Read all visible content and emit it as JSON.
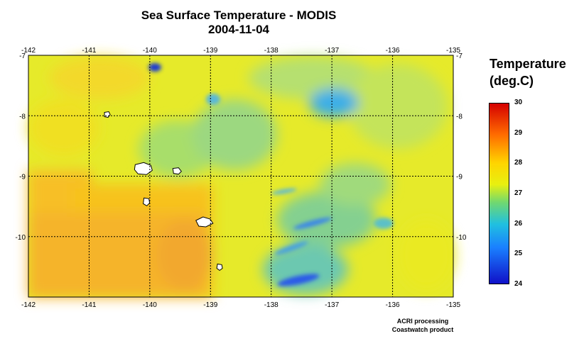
{
  "title": {
    "line1": "Sea Surface Temperature - MODIS",
    "line2": "2004-11-04"
  },
  "map": {
    "lon_min": -142,
    "lon_max": -135,
    "lat_min": -11,
    "lat_max": -7,
    "lon_ticks": [
      "-142",
      "-141",
      "-140",
      "-139",
      "-138",
      "-137",
      "-136",
      "-135"
    ],
    "lat_ticks": [
      "-7",
      "-8",
      "-9",
      "-10"
    ],
    "grid": "dotted",
    "islands": [
      {
        "name": "",
        "lon": -140.7,
        "lat": -7.98
      },
      {
        "name": "",
        "lon": -140.1,
        "lat": -8.88
      },
      {
        "name": "",
        "lon": -139.55,
        "lat": -8.92
      },
      {
        "name": "",
        "lon": -140.05,
        "lat": -9.42
      },
      {
        "name": "",
        "lon": -139.1,
        "lat": -9.78
      },
      {
        "name": "",
        "lon": -138.85,
        "lat": -10.5
      }
    ]
  },
  "colorbar": {
    "title_line1": "Temperature",
    "title_line2": "(deg.C)",
    "min": 24,
    "max": 30,
    "labels": [
      "30",
      "29",
      "28",
      "27",
      "26",
      "25",
      "24"
    ],
    "colors": [
      "#d40000",
      "#ff6a00",
      "#ffd400",
      "#f5f000",
      "#40d8a0",
      "#1aa0ff",
      "#1010d0"
    ]
  },
  "credit": {
    "line1": "ACRI processing",
    "line2": "Coastwatch product"
  }
}
